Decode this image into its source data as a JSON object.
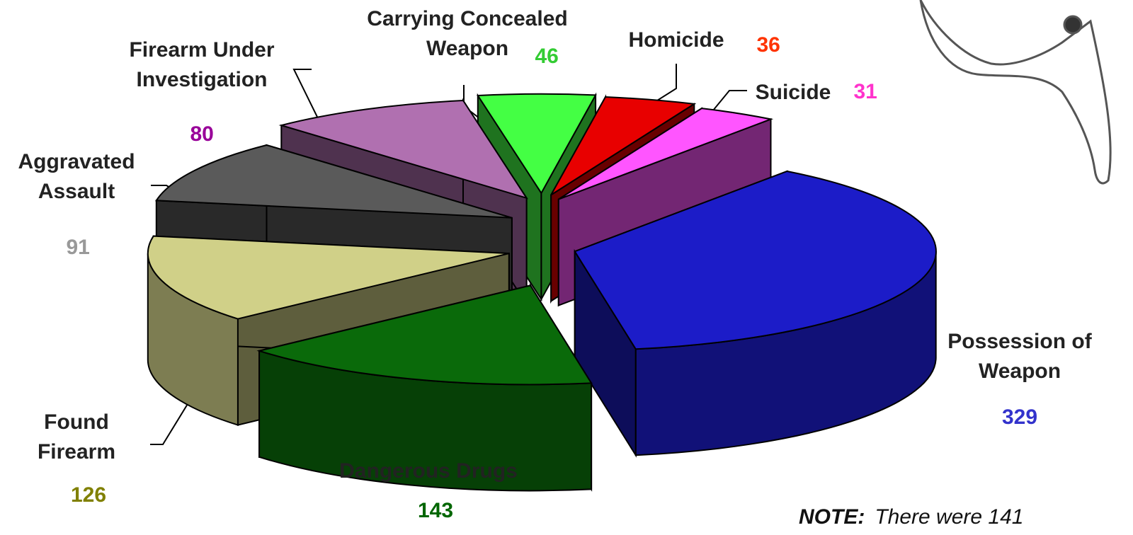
{
  "chart_data": {
    "type": "pie",
    "categories": [
      "Possession of Weapon",
      "Dangerous Drugs",
      "Found Firearm",
      "Aggravated Assault",
      "Firearm Under Investigation",
      "Carrying Concealed Weapon",
      "Homicide",
      "Suicide"
    ],
    "values": [
      329,
      143,
      126,
      91,
      80,
      46,
      36,
      31
    ],
    "colors": [
      "#1c1cc8",
      "#0a6a0a",
      "#d0d088",
      "#5a5a5a",
      "#b070b0",
      "#44ff44",
      "#e80000",
      "#ff55ff"
    ],
    "label_colors": [
      "#3333cc",
      "#006600",
      "#808000",
      "#999999",
      "#990099",
      "#33cc33",
      "#ff3300",
      "#ff33cc"
    ],
    "annotation": {
      "label": "NOTE:",
      "text": "There were 141"
    }
  }
}
